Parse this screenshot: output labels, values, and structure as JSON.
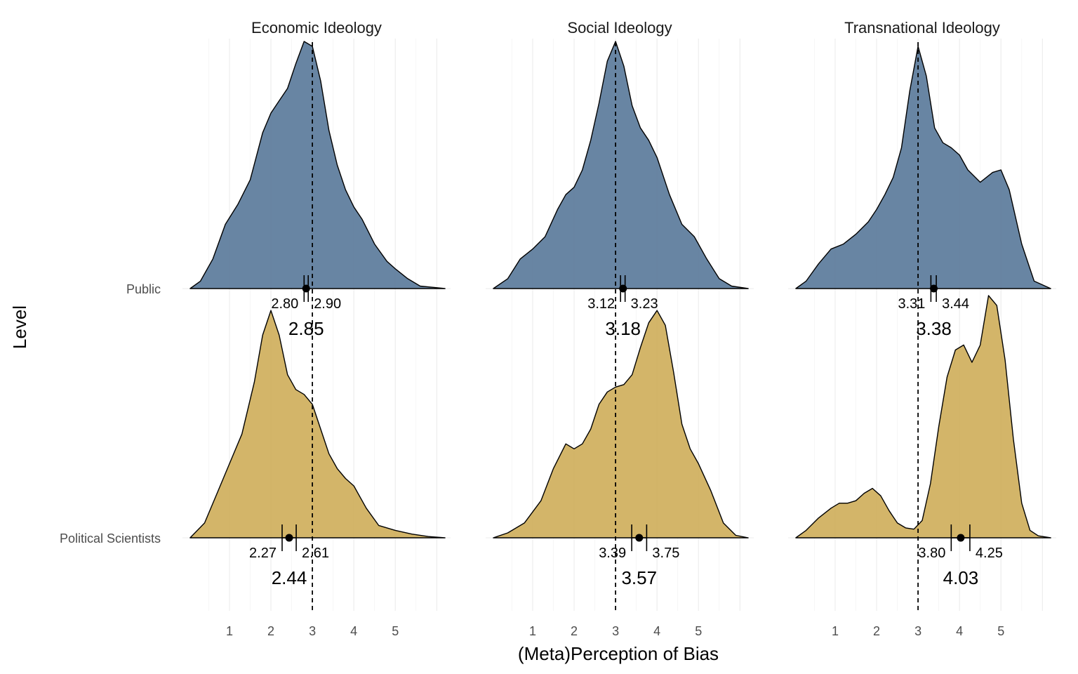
{
  "chart_data": {
    "type": "ridgeline-density",
    "xlabel": "(Meta)Perception of Bias",
    "ylabel": "Level",
    "x_ticks": [
      1,
      2,
      3,
      4,
      5
    ],
    "xlim": [
      -0.1,
      6.3
    ],
    "reference_line_x": 3,
    "levels": [
      "Public",
      "Political Scientists"
    ],
    "colors": {
      "Public": "#5b7b9b",
      "Political Scientists": "#cfaf5c"
    },
    "panels": [
      {
        "title": "Economic Ideology",
        "series": [
          {
            "level": "Public",
            "mean": 2.85,
            "lo": 2.8,
            "hi": 2.9,
            "mean_label": "2.85",
            "lo_label": "2.80",
            "hi_label": "2.90",
            "density_x": [
              0.05,
              0.3,
              0.6,
              0.9,
              1.2,
              1.5,
              1.8,
              2.0,
              2.2,
              2.4,
              2.6,
              2.8,
              3.0,
              3.2,
              3.4,
              3.6,
              3.8,
              4.0,
              4.2,
              4.5,
              4.8,
              5.0,
              5.3,
              5.6,
              5.9,
              6.2
            ],
            "density_y": [
              0.0,
              0.03,
              0.12,
              0.26,
              0.34,
              0.44,
              0.63,
              0.71,
              0.76,
              0.81,
              0.91,
              1.0,
              0.98,
              0.84,
              0.64,
              0.5,
              0.4,
              0.33,
              0.28,
              0.18,
              0.11,
              0.08,
              0.04,
              0.01,
              0.005,
              0.0
            ]
          },
          {
            "level": "Political Scientists",
            "mean": 2.44,
            "lo": 2.27,
            "hi": 2.61,
            "mean_label": "2.44",
            "lo_label": "2.27",
            "hi_label": "2.61",
            "density_x": [
              0.05,
              0.4,
              0.7,
              1.0,
              1.3,
              1.6,
              1.8,
              2.0,
              2.2,
              2.4,
              2.6,
              2.8,
              3.0,
              3.2,
              3.4,
              3.6,
              3.8,
              4.0,
              4.3,
              4.6,
              5.0,
              5.4,
              5.8,
              6.2
            ],
            "density_y": [
              0.0,
              0.06,
              0.18,
              0.3,
              0.42,
              0.63,
              0.82,
              0.92,
              0.82,
              0.66,
              0.6,
              0.58,
              0.54,
              0.44,
              0.34,
              0.28,
              0.24,
              0.21,
              0.12,
              0.05,
              0.03,
              0.015,
              0.005,
              0.0
            ]
          }
        ]
      },
      {
        "title": "Social Ideology",
        "series": [
          {
            "level": "Public",
            "mean": 3.18,
            "lo": 3.12,
            "hi": 3.23,
            "mean_label": "3.18",
            "lo_label": "3.12",
            "hi_label": "3.23",
            "density_x": [
              0.05,
              0.4,
              0.7,
              1.0,
              1.3,
              1.6,
              1.8,
              2.0,
              2.2,
              2.4,
              2.6,
              2.8,
              3.0,
              3.2,
              3.4,
              3.6,
              3.8,
              4.0,
              4.3,
              4.6,
              4.9,
              5.2,
              5.5,
              5.8,
              6.2
            ],
            "density_y": [
              0.0,
              0.04,
              0.12,
              0.16,
              0.21,
              0.32,
              0.38,
              0.41,
              0.48,
              0.6,
              0.75,
              0.92,
              1.0,
              0.9,
              0.74,
              0.65,
              0.6,
              0.53,
              0.38,
              0.26,
              0.21,
              0.12,
              0.04,
              0.01,
              0.0
            ]
          },
          {
            "level": "Political Scientists",
            "mean": 3.57,
            "lo": 3.39,
            "hi": 3.75,
            "mean_label": "3.57",
            "lo_label": "3.39",
            "hi_label": "3.75",
            "density_x": [
              0.05,
              0.4,
              0.8,
              1.2,
              1.5,
              1.8,
              2.0,
              2.2,
              2.4,
              2.6,
              2.8,
              3.0,
              3.2,
              3.4,
              3.6,
              3.8,
              4.0,
              4.2,
              4.4,
              4.6,
              4.8,
              5.0,
              5.3,
              5.6,
              5.9,
              6.2
            ],
            "density_y": [
              0.0,
              0.02,
              0.06,
              0.15,
              0.28,
              0.38,
              0.36,
              0.38,
              0.44,
              0.54,
              0.59,
              0.61,
              0.62,
              0.66,
              0.77,
              0.87,
              0.92,
              0.86,
              0.67,
              0.46,
              0.36,
              0.3,
              0.19,
              0.06,
              0.01,
              0.0
            ]
          }
        ]
      },
      {
        "title": "Transnational Ideology",
        "series": [
          {
            "level": "Public",
            "mean": 3.38,
            "lo": 3.31,
            "hi": 3.44,
            "mean_label": "3.38",
            "lo_label": "3.31",
            "hi_label": "3.44",
            "density_x": [
              0.05,
              0.3,
              0.6,
              0.9,
              1.2,
              1.5,
              1.8,
              2.0,
              2.2,
              2.4,
              2.6,
              2.8,
              3.0,
              3.2,
              3.4,
              3.6,
              3.8,
              4.0,
              4.2,
              4.5,
              4.8,
              5.0,
              5.2,
              5.5,
              5.8,
              6.2
            ],
            "density_y": [
              0.0,
              0.03,
              0.1,
              0.16,
              0.18,
              0.22,
              0.27,
              0.32,
              0.38,
              0.45,
              0.57,
              0.8,
              0.98,
              0.86,
              0.65,
              0.59,
              0.57,
              0.54,
              0.48,
              0.43,
              0.47,
              0.48,
              0.4,
              0.18,
              0.03,
              0.0
            ]
          },
          {
            "level": "Political Scientists",
            "mean": 4.03,
            "lo": 3.8,
            "hi": 4.25,
            "mean_label": "4.03",
            "lo_label": "3.80",
            "hi_label": "4.25",
            "density_x": [
              0.05,
              0.3,
              0.6,
              0.9,
              1.1,
              1.3,
              1.5,
              1.7,
              1.9,
              2.1,
              2.3,
              2.5,
              2.7,
              2.9,
              3.1,
              3.3,
              3.5,
              3.7,
              3.9,
              4.1,
              4.3,
              4.5,
              4.7,
              4.9,
              5.1,
              5.3,
              5.5,
              5.7,
              5.9,
              6.2
            ],
            "density_y": [
              0.0,
              0.03,
              0.08,
              0.12,
              0.14,
              0.14,
              0.15,
              0.18,
              0.2,
              0.17,
              0.11,
              0.06,
              0.04,
              0.035,
              0.07,
              0.22,
              0.45,
              0.65,
              0.76,
              0.78,
              0.71,
              0.78,
              0.98,
              0.94,
              0.72,
              0.4,
              0.14,
              0.03,
              0.008,
              0.0
            ]
          }
        ]
      }
    ]
  }
}
